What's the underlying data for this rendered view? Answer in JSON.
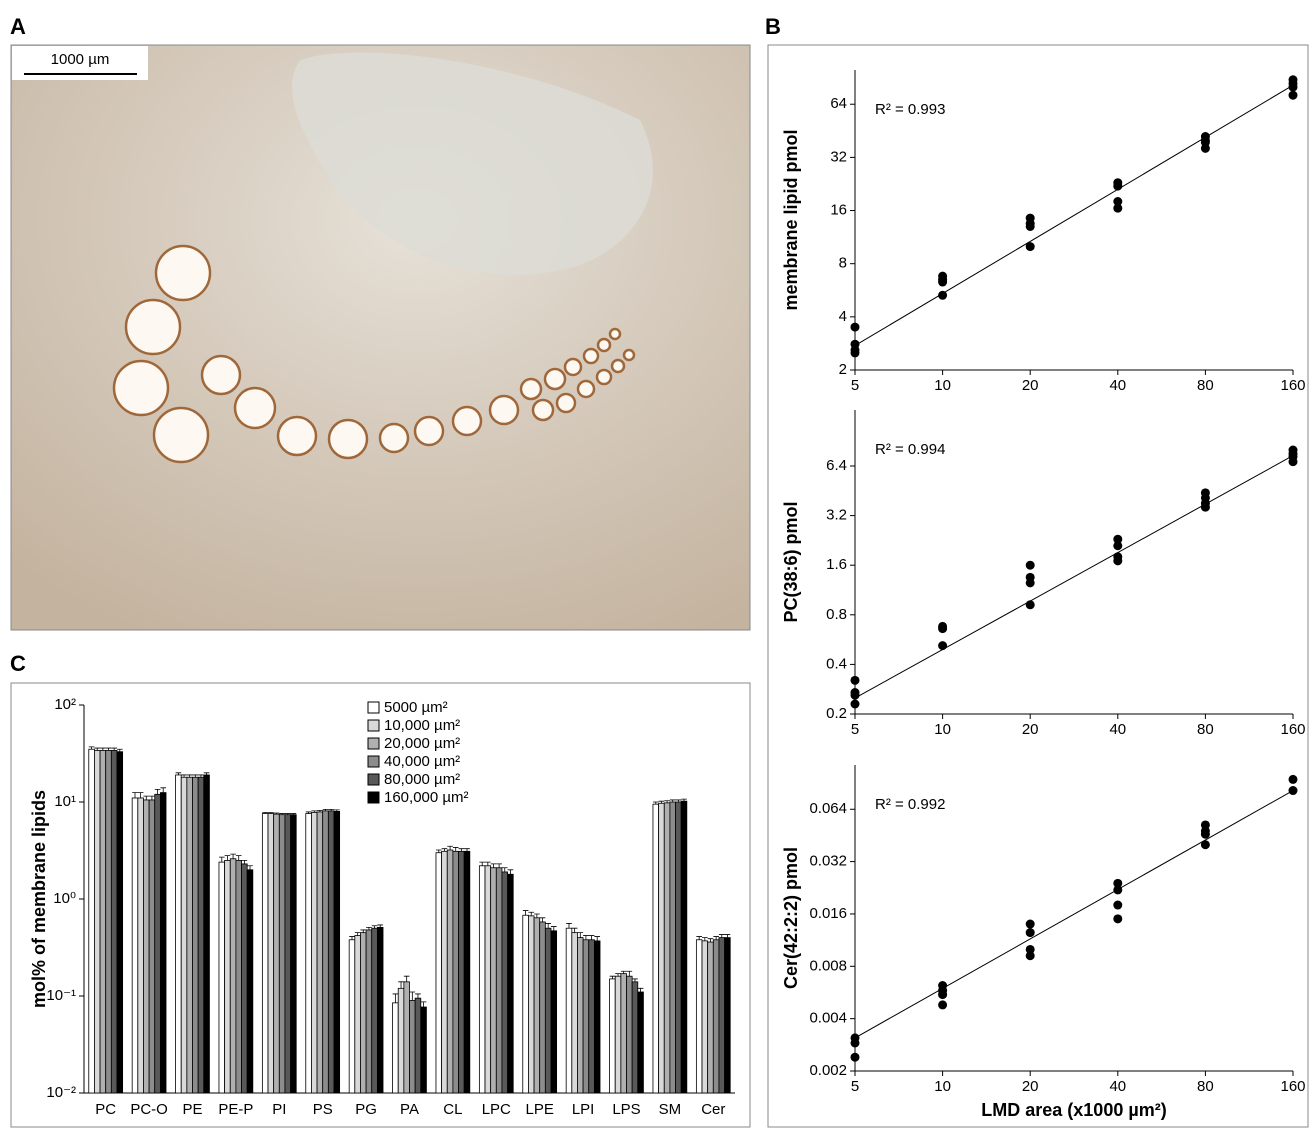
{
  "image_panel": {
    "panel_label": "A",
    "scale_bar_label": "1000 µm"
  },
  "chart_data": [
    {
      "type": "scatter",
      "panel_label": "B",
      "y_label": "membrane lipid pmol",
      "annotation": "R² = 0.993",
      "xscale": "log",
      "yscale": "log",
      "color": "#000000",
      "xlim": [
        5,
        160
      ],
      "xticks": [
        5,
        10,
        20,
        40,
        80,
        160
      ],
      "ylim": [
        2,
        100
      ],
      "yticks": [
        2,
        4,
        8,
        16,
        32,
        64
      ],
      "x": [
        5,
        5,
        5,
        5,
        10,
        10,
        10,
        10,
        20,
        20,
        20,
        20,
        40,
        40,
        40,
        40,
        80,
        80,
        80,
        80,
        160,
        160,
        160,
        160
      ],
      "values": [
        3.5,
        2.8,
        2.6,
        2.5,
        6.8,
        6.5,
        6.3,
        5.3,
        14.5,
        13.5,
        13,
        10,
        23,
        22,
        18,
        16.5,
        42,
        40,
        39,
        36,
        88,
        84,
        80,
        72
      ],
      "fit_line": {
        "x": [
          5,
          160
        ],
        "values": [
          2.75,
          82
        ]
      }
    },
    {
      "type": "scatter",
      "y_label": "PC(38:6) pmol",
      "annotation": "R² = 0.994",
      "xscale": "log",
      "yscale": "log",
      "color": "#000000",
      "xlim": [
        5,
        160
      ],
      "xticks": [
        5,
        10,
        20,
        40,
        80,
        160
      ],
      "ylim": [
        0.2,
        14
      ],
      "yticks": [
        0.2,
        0.4,
        0.8,
        1.6,
        3.2,
        6.4
      ],
      "x": [
        5,
        5,
        5,
        5,
        10,
        10,
        10,
        20,
        20,
        20,
        20,
        40,
        40,
        40,
        40,
        80,
        80,
        80,
        80,
        160,
        160,
        160,
        160
      ],
      "values": [
        0.32,
        0.27,
        0.26,
        0.23,
        0.68,
        0.66,
        0.52,
        1.6,
        1.35,
        1.25,
        0.92,
        2.3,
        2.1,
        1.8,
        1.7,
        4.4,
        4.1,
        3.8,
        3.6,
        8.0,
        7.6,
        7.3,
        6.8
      ],
      "fit_line": {
        "x": [
          5,
          160
        ],
        "values": [
          0.25,
          7.4
        ]
      }
    },
    {
      "type": "scatter",
      "y_label": "Cer(42:2:2) pmol",
      "x_label": "LMD area (x1000 µm²)",
      "annotation": "R² = 0.992",
      "xscale": "log",
      "yscale": "log",
      "color": "#000000",
      "xlim": [
        5,
        160
      ],
      "xticks": [
        5,
        10,
        20,
        40,
        80,
        160
      ],
      "ylim": [
        0.002,
        0.115
      ],
      "yticks": [
        0.002,
        0.004,
        0.008,
        0.016,
        0.032,
        0.064
      ],
      "x": [
        5,
        5,
        5,
        10,
        10,
        10,
        10,
        20,
        20,
        20,
        20,
        40,
        40,
        40,
        40,
        80,
        80,
        80,
        80,
        160,
        160
      ],
      "values": [
        0.0031,
        0.0029,
        0.0024,
        0.0062,
        0.0058,
        0.0055,
        0.0048,
        0.014,
        0.0125,
        0.01,
        0.0092,
        0.024,
        0.022,
        0.018,
        0.015,
        0.052,
        0.048,
        0.046,
        0.04,
        0.095,
        0.082
      ],
      "fit_line": {
        "x": [
          5,
          160
        ],
        "values": [
          0.0031,
          0.082
        ]
      }
    },
    {
      "type": "bar",
      "panel_label": "C",
      "y_label": "mol% of membrane lipids",
      "yscale": "log",
      "legend": "top-center",
      "ylim": [
        0.01,
        100
      ],
      "yticks": [
        {
          "value": 0.01,
          "label": "10⁻²"
        },
        {
          "value": 0.1,
          "label": "10⁻¹"
        },
        {
          "value": 1,
          "label": "10⁰"
        },
        {
          "value": 10,
          "label": "10¹"
        },
        {
          "value": 100,
          "label": "10²"
        }
      ],
      "categories": [
        "PC",
        "PC-O",
        "PE",
        "PE-P",
        "PI",
        "PS",
        "PG",
        "PA",
        "CL",
        "LPC",
        "LPE",
        "LPI",
        "LPS",
        "SM",
        "Cer"
      ],
      "series": [
        {
          "name": "5000 µm²",
          "color": "#ffffff",
          "values": [
            35,
            11,
            19,
            2.4,
            7.6,
            7.6,
            0.38,
            0.085,
            3.0,
            2.2,
            0.68,
            0.5,
            0.15,
            9.5,
            0.38
          ],
          "errors": [
            2,
            1.5,
            1,
            0.3,
            0.2,
            0.3,
            0.03,
            0.02,
            0.2,
            0.2,
            0.08,
            0.06,
            0.01,
            0.5,
            0.03
          ]
        },
        {
          "name": "10,000 µm²",
          "color": "#d9d9d9",
          "values": [
            34,
            11,
            18,
            2.5,
            7.6,
            7.8,
            0.42,
            0.12,
            3.1,
            2.2,
            0.67,
            0.45,
            0.16,
            9.7,
            0.37
          ],
          "errors": [
            2,
            1.5,
            1,
            0.3,
            0.2,
            0.3,
            0.03,
            0.02,
            0.2,
            0.2,
            0.06,
            0.05,
            0.01,
            0.5,
            0.03
          ]
        },
        {
          "name": "20,000 µm²",
          "color": "#b0b0b0",
          "values": [
            34,
            10.5,
            18,
            2.6,
            7.5,
            7.9,
            0.45,
            0.14,
            3.2,
            2.1,
            0.64,
            0.4,
            0.17,
            9.8,
            0.36
          ],
          "errors": [
            2,
            1,
            1,
            0.3,
            0.2,
            0.3,
            0.03,
            0.02,
            0.3,
            0.2,
            0.06,
            0.05,
            0.01,
            0.5,
            0.03
          ]
        },
        {
          "name": "40,000 µm²",
          "color": "#8c8c8c",
          "values": [
            34,
            10.5,
            18,
            2.5,
            7.4,
            8.1,
            0.48,
            0.09,
            3.1,
            2.1,
            0.58,
            0.38,
            0.16,
            10.0,
            0.38
          ],
          "errors": [
            2,
            1,
            1,
            0.3,
            0.2,
            0.3,
            0.03,
            0.02,
            0.3,
            0.2,
            0.06,
            0.04,
            0.02,
            0.5,
            0.03
          ]
        },
        {
          "name": "80,000 µm²",
          "color": "#595959",
          "values": [
            34,
            12,
            18,
            2.3,
            7.4,
            8.1,
            0.5,
            0.095,
            3.1,
            1.9,
            0.5,
            0.38,
            0.14,
            10.0,
            0.4
          ],
          "errors": [
            2,
            1.5,
            1,
            0.2,
            0.2,
            0.3,
            0.03,
            0.01,
            0.2,
            0.2,
            0.06,
            0.04,
            0.01,
            0.5,
            0.03
          ]
        },
        {
          "name": "160,000 µm²",
          "color": "#000000",
          "values": [
            33,
            12.5,
            19,
            2.0,
            7.4,
            8.0,
            0.51,
            0.077,
            3.1,
            1.8,
            0.47,
            0.37,
            0.11,
            10.2,
            0.4
          ],
          "errors": [
            2,
            1.5,
            1,
            0.2,
            0.2,
            0.3,
            0.03,
            0.01,
            0.2,
            0.2,
            0.05,
            0.04,
            0.01,
            0.5,
            0.03
          ]
        }
      ]
    }
  ]
}
